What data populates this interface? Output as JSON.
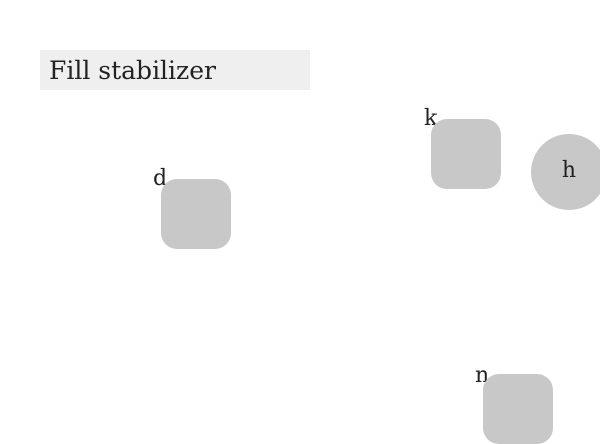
{
  "title": "Fill stabilizer",
  "nodes": [
    {
      "label": "d",
      "shape": "rounded-square"
    },
    {
      "label": "k",
      "shape": "rounded-square"
    },
    {
      "label": "h",
      "shape": "circle"
    },
    {
      "label": "n",
      "shape": "rounded-square"
    }
  ],
  "colors": {
    "node_fill": "#c8c8c8",
    "title_background": "#efefef",
    "text": "#222222"
  }
}
